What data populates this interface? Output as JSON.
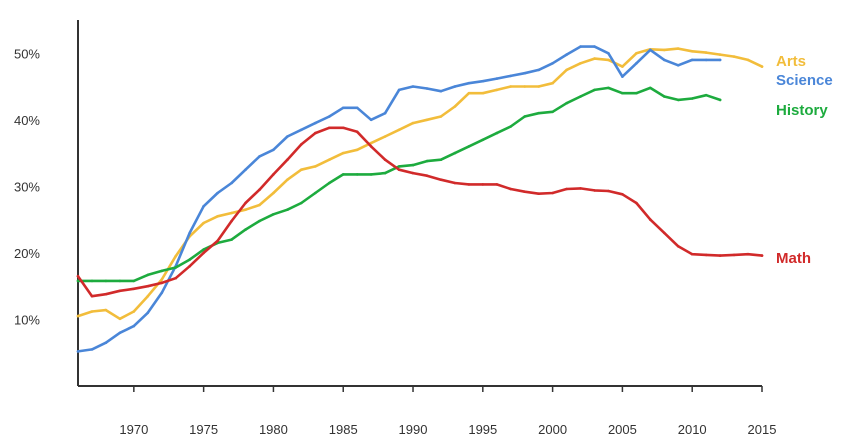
{
  "chart_data": {
    "type": "line",
    "title": "",
    "xlabel": "",
    "ylabel": "",
    "xlim": [
      1966,
      2015
    ],
    "ylim": [
      0,
      55
    ],
    "x_ticks": [
      1970,
      1975,
      1980,
      1985,
      1990,
      1995,
      2000,
      2005,
      2010,
      2015
    ],
    "x_tick_labels": [
      "1970",
      "1975",
      "1980",
      "1985",
      "1990",
      "1995",
      "2000",
      "2005",
      "2010",
      "2015"
    ],
    "y_ticks": [
      10,
      20,
      30,
      40,
      50
    ],
    "y_tick_labels": [
      "10%",
      "20%",
      "30%",
      "40%",
      "50%"
    ],
    "grid": false,
    "legend": "inline labels at right end of lines",
    "series": [
      {
        "name": "Arts",
        "color": "#F2BD3B",
        "x": [
          1966,
          1967,
          1968,
          1969,
          1970,
          1971,
          1972,
          1973,
          1974,
          1975,
          1976,
          1977,
          1978,
          1979,
          1980,
          1981,
          1982,
          1983,
          1984,
          1985,
          1986,
          1987,
          1988,
          1989,
          1990,
          1991,
          1992,
          1993,
          1994,
          1995,
          1996,
          1997,
          1998,
          1999,
          2000,
          2001,
          2002,
          2003,
          2004,
          2005,
          2006,
          2007,
          2008,
          2009,
          2010,
          2011,
          2012,
          2013,
          2014,
          2015
        ],
        "values": [
          10.5,
          11.2,
          11.4,
          10.1,
          11.2,
          13.5,
          16.0,
          19.5,
          22.5,
          24.5,
          25.5,
          26.0,
          26.5,
          27.2,
          29.0,
          31.0,
          32.5,
          33.0,
          34.0,
          35.0,
          35.5,
          36.5,
          37.5,
          38.5,
          39.5,
          40.0,
          40.5,
          42.0,
          44.0,
          44.0,
          44.5,
          45.0,
          45.0,
          45.0,
          45.5,
          47.5,
          48.5,
          49.2,
          49.0,
          48.0,
          50.0,
          50.6,
          50.5,
          50.7,
          50.3,
          50.1,
          49.8,
          49.5,
          49.0,
          48.0
        ]
      },
      {
        "name": "Science",
        "color": "#4A86D8",
        "x": [
          1966,
          1967,
          1968,
          1969,
          1970,
          1971,
          1972,
          1973,
          1974,
          1975,
          1976,
          1977,
          1978,
          1979,
          1980,
          1981,
          1982,
          1983,
          1984,
          1985,
          1986,
          1987,
          1988,
          1989,
          1990,
          1991,
          1992,
          1993,
          1994,
          1995,
          1996,
          1997,
          1998,
          1999,
          2000,
          2001,
          2002,
          2003,
          2004,
          2005,
          2006,
          2007,
          2008,
          2009,
          2010,
          2011,
          2012
        ],
        "values": [
          5.2,
          5.5,
          6.5,
          8.0,
          9.0,
          11.0,
          14.0,
          18.0,
          23.0,
          27.0,
          29.0,
          30.5,
          32.5,
          34.5,
          35.5,
          37.5,
          38.5,
          39.5,
          40.5,
          41.8,
          41.8,
          40.0,
          41.0,
          44.5,
          45.0,
          44.7,
          44.3,
          45.0,
          45.5,
          45.8,
          46.2,
          46.6,
          47.0,
          47.5,
          48.5,
          49.8,
          51.0,
          51.0,
          50.0,
          46.5,
          48.5,
          50.5,
          49.0,
          48.2,
          49.0,
          49.0,
          49.0
        ]
      },
      {
        "name": "History",
        "color": "#1DAB3E",
        "x": [
          1966,
          1967,
          1968,
          1969,
          1970,
          1971,
          1972,
          1973,
          1974,
          1975,
          1976,
          1977,
          1978,
          1979,
          1980,
          1981,
          1982,
          1983,
          1984,
          1985,
          1986,
          1987,
          1988,
          1989,
          1990,
          1991,
          1992,
          1993,
          1994,
          1995,
          1996,
          1997,
          1998,
          1999,
          2000,
          2001,
          2002,
          2003,
          2004,
          2005,
          2006,
          2007,
          2008,
          2009,
          2010,
          2011,
          2012
        ],
        "values": [
          15.8,
          15.8,
          15.8,
          15.8,
          15.8,
          16.7,
          17.3,
          17.8,
          19.0,
          20.5,
          21.5,
          22.0,
          23.5,
          24.8,
          25.8,
          26.5,
          27.5,
          29.0,
          30.5,
          31.8,
          31.8,
          31.8,
          32.0,
          33.0,
          33.2,
          33.8,
          34.0,
          35.0,
          36.0,
          37.0,
          38.0,
          39.0,
          40.5,
          41.0,
          41.2,
          42.5,
          43.5,
          44.5,
          44.8,
          44.0,
          44.0,
          44.8,
          43.5,
          43.0,
          43.2,
          43.7,
          43.0
        ]
      },
      {
        "name": "Math",
        "color": "#D12A2A",
        "x": [
          1966,
          1967,
          1968,
          1969,
          1970,
          1971,
          1972,
          1973,
          1974,
          1975,
          1976,
          1977,
          1978,
          1979,
          1980,
          1981,
          1982,
          1983,
          1984,
          1985,
          1986,
          1987,
          1988,
          1989,
          1990,
          1991,
          1992,
          1993,
          1994,
          1995,
          1996,
          1997,
          1998,
          1999,
          2000,
          2001,
          2002,
          2003,
          2004,
          2005,
          2006,
          2007,
          2008,
          2009,
          2010,
          2011,
          2012,
          2013,
          2014,
          2015
        ],
        "values": [
          16.5,
          13.5,
          13.8,
          14.3,
          14.6,
          15.0,
          15.5,
          16.2,
          18.0,
          20.0,
          21.8,
          24.8,
          27.5,
          29.5,
          31.8,
          34.0,
          36.3,
          38.0,
          38.8,
          38.8,
          38.2,
          36.0,
          34.0,
          32.5,
          32.0,
          31.6,
          31.0,
          30.5,
          30.3,
          30.3,
          30.3,
          29.6,
          29.2,
          28.9,
          29.0,
          29.6,
          29.7,
          29.4,
          29.3,
          28.8,
          27.5,
          25.0,
          23.0,
          21.0,
          19.8,
          19.7,
          19.6,
          19.7,
          19.8,
          19.6
        ]
      }
    ]
  }
}
